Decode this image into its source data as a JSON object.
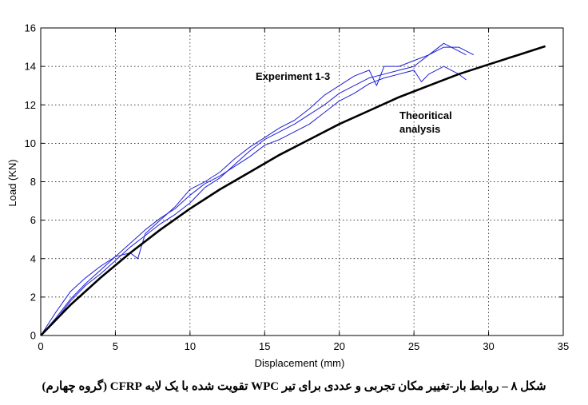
{
  "chart_data": {
    "type": "line",
    "xlabel": "Displacement (mm)",
    "ylabel": "Load (KN)",
    "xlim": [
      0,
      35
    ],
    "ylim": [
      0,
      16
    ],
    "xticks": [
      "0",
      "5",
      "10",
      "15",
      "20",
      "25",
      "30",
      "35"
    ],
    "yticks": [
      "0",
      "2",
      "4",
      "6",
      "8",
      "10",
      "12",
      "14",
      "16"
    ],
    "grid": "dotted",
    "annotations": {
      "experiment": "Experiment 1-3",
      "theory_line1": "Theoritical",
      "theory_line2": "analysis"
    },
    "colors": {
      "experiment": "#1f1fd6",
      "theory": "#000000"
    },
    "series": [
      {
        "x": [
          0,
          1,
          2,
          3,
          4,
          5,
          6,
          6.5,
          7,
          8,
          9,
          10,
          11,
          12,
          13,
          14,
          15,
          16,
          17,
          18,
          19,
          20,
          21,
          22,
          22.5,
          23,
          24,
          25,
          26,
          27,
          28,
          29
        ],
        "y": [
          0,
          1.2,
          2.3,
          3.0,
          3.6,
          4.1,
          4.3,
          4.0,
          5.3,
          6.0,
          6.7,
          7.6,
          8.0,
          8.5,
          9.2,
          9.8,
          10.3,
          10.8,
          11.2,
          11.8,
          12.5,
          13.0,
          13.5,
          13.8,
          13.0,
          14.0,
          14.0,
          14.3,
          14.6,
          15.0,
          15.0,
          14.6
        ]
      },
      {
        "x": [
          0,
          1,
          2,
          3,
          4,
          5,
          6,
          7,
          8,
          9,
          10,
          11,
          12,
          13,
          14,
          15,
          16,
          17,
          18,
          19,
          20,
          21,
          22,
          23,
          24,
          25,
          26,
          27,
          28,
          28.5
        ],
        "y": [
          0,
          0.8,
          1.8,
          2.6,
          3.2,
          3.9,
          4.6,
          5.2,
          5.8,
          6.3,
          6.9,
          7.7,
          8.2,
          8.9,
          9.6,
          10.2,
          10.6,
          11.0,
          11.5,
          12.0,
          12.6,
          13.0,
          13.4,
          13.6,
          13.8,
          14.0,
          14.6,
          15.2,
          14.8,
          14.6
        ]
      },
      {
        "x": [
          0,
          1,
          2,
          3,
          4,
          5,
          6,
          7,
          8,
          9,
          10,
          11,
          12,
          13,
          14,
          15,
          16,
          17,
          18,
          19,
          20,
          21,
          22,
          23,
          24,
          25,
          25.5,
          26,
          27,
          28,
          28.5
        ],
        "y": [
          0,
          0.9,
          1.9,
          2.7,
          3.4,
          4.1,
          4.8,
          5.5,
          6.1,
          6.6,
          7.3,
          7.9,
          8.3,
          8.8,
          9.3,
          9.9,
          10.2,
          10.6,
          11.0,
          11.6,
          12.2,
          12.6,
          13.1,
          13.4,
          13.6,
          13.8,
          13.2,
          13.6,
          14.0,
          13.6,
          13.3
        ]
      },
      {
        "x": [
          0,
          2,
          4,
          6,
          8,
          10,
          12,
          14,
          16,
          18,
          20,
          22,
          24,
          26,
          28,
          30,
          32,
          33.8
        ],
        "y": [
          0,
          1.6,
          3.0,
          4.3,
          5.5,
          6.6,
          7.6,
          8.5,
          9.4,
          10.2,
          11.0,
          11.7,
          12.4,
          13.0,
          13.6,
          14.1,
          14.6,
          15.05
        ]
      }
    ]
  },
  "caption": "شکل ۸ – روابط بار-تغییر مکان تجربی و عددی برای تیر WPC تقویت شده با یک لایه CFRP (گروه چهارم)"
}
